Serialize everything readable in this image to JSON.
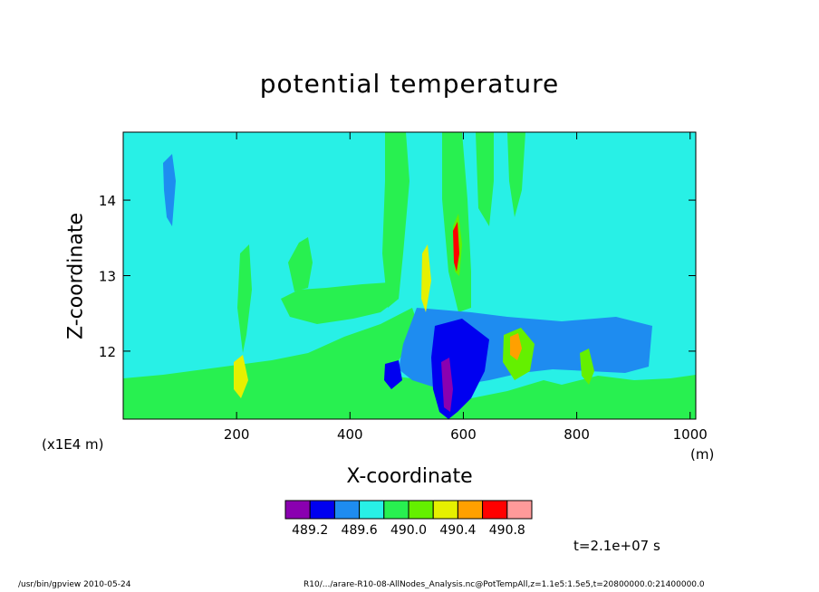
{
  "chart_data": {
    "type": "heatmap",
    "title": "potential temperature",
    "xlabel": "X-coordinate",
    "ylabel": "Z-coordinate",
    "x_unit": "(m)",
    "y_scale_label": "(x1E4 m)",
    "xlim": [
      0,
      1010
    ],
    "ylim": [
      11.1,
      14.9
    ],
    "x_ticks": [
      "200",
      "400",
      "600",
      "800",
      "1000"
    ],
    "y_ticks": [
      "12",
      "13",
      "14"
    ],
    "colorbar": {
      "colors": [
        "#8a00b0",
        "#0000f0",
        "#1e8cf0",
        "#28f0e6",
        "#28f050",
        "#64f000",
        "#e6f000",
        "#ffa000",
        "#ff0000",
        "#ff9a9a"
      ],
      "labels": [
        "489.2",
        "489.6",
        "490.0",
        "490.4",
        "490.8"
      ]
    },
    "background_color": "#28f0e6",
    "time_label": "t=2.1e+07 s"
  },
  "footer": {
    "left": "/usr/bin/gpview   2010-05-24",
    "right": "R10/.../arare-R10-08-AllNodes_Analysis.nc@PotTempAll,z=1.1e5:1.5e5,t=20800000.0:21400000.0"
  }
}
